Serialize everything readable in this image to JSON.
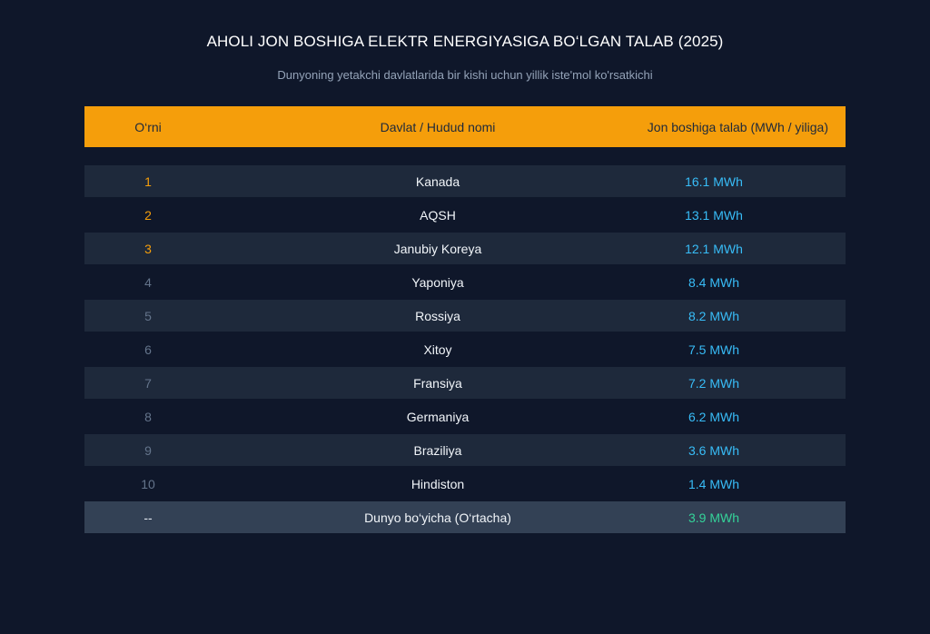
{
  "chart_data": {
    "type": "table",
    "title": "AHOLI JON BOSHIGA ELEKTR ENERGIYASIGA BO‘LGAN TALAB (2025)",
    "subtitle": "Dunyoning yetakchi davlatlarida bir kishi uchun yillik iste'mol ko'rsatkichi",
    "columns": [
      "O‘rni",
      "Davlat / Hudud nomi",
      "Jon boshiga talab (MWh / yiliga)"
    ],
    "rows": [
      {
        "rank": "1",
        "name": "Kanada",
        "value": "16.1 MWh"
      },
      {
        "rank": "2",
        "name": "AQSH",
        "value": "13.1 MWh"
      },
      {
        "rank": "3",
        "name": "Janubiy Koreya",
        "value": "12.1 MWh"
      },
      {
        "rank": "4",
        "name": "Yaponiya",
        "value": "8.4 MWh"
      },
      {
        "rank": "5",
        "name": "Rossiya",
        "value": "8.2 MWh"
      },
      {
        "rank": "6",
        "name": "Xitoy",
        "value": "7.5 MWh"
      },
      {
        "rank": "7",
        "name": "Fransiya",
        "value": "7.2 MWh"
      },
      {
        "rank": "8",
        "name": "Germaniya",
        "value": "6.2 MWh"
      },
      {
        "rank": "9",
        "name": "Braziliya",
        "value": "3.6 MWh"
      },
      {
        "rank": "10",
        "name": "Hindiston",
        "value": "1.4 MWh"
      }
    ],
    "average": {
      "rank": "--",
      "name": "Dunyo bo‘yicha (O‘rtacha)",
      "value": "3.9 MWh"
    },
    "colors": {
      "background": "#0f172a",
      "header": "#f59e0b",
      "row_alt": "#1e293b",
      "average_row": "#334155",
      "value": "#38bdf8",
      "average_value": "#34d399",
      "top_rank": "#f59e0b"
    }
  }
}
